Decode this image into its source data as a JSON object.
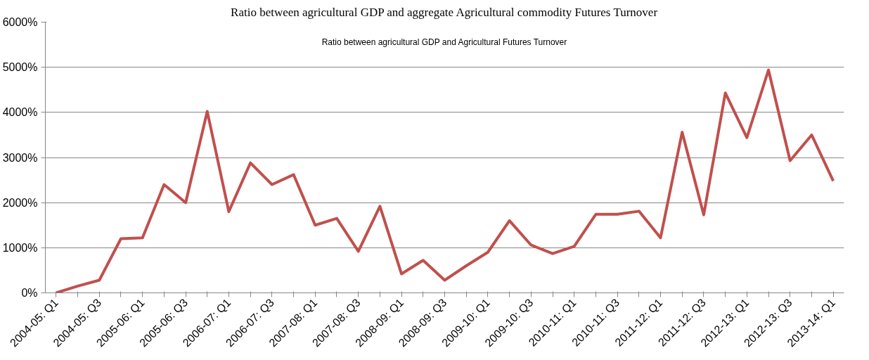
{
  "chart_data": {
    "type": "line",
    "title": "Ratio between agricultural GDP and aggregate Agricultural commodity Futures Turnover",
    "annotations": [
      "Ratio between agricultural GDP and Agricultural Futures Turnover"
    ],
    "categories": [
      "2004-05: Q1",
      null,
      "2004-05: Q3",
      null,
      "2005-06: Q1",
      null,
      "2005-06: Q3",
      null,
      "2006-07: Q1",
      null,
      "2006-07: Q3",
      null,
      "2007-08: Q1",
      null,
      "2007-08: Q3",
      null,
      "2008-09: Q1",
      null,
      "2008-09: Q3",
      null,
      "2009-10: Q1",
      null,
      "2009-10: Q3",
      null,
      "2010-11: Q1",
      null,
      "2010-11: Q3",
      null,
      "2011-12: Q1",
      null,
      "2011-12: Q3",
      null,
      "2012-13: Q1",
      null,
      "2012-13: Q3",
      null,
      "2013-14: Q1"
    ],
    "series": [
      {
        "color": "#c0504d",
        "values": [
          0,
          150,
          280,
          1200,
          1220,
          2400,
          2000,
          4020,
          1800,
          2880,
          2400,
          2620,
          1500,
          1650,
          920,
          1920,
          420,
          720,
          280,
          600,
          900,
          1600,
          1060,
          870,
          1030,
          1740,
          1740,
          1810,
          1220,
          3560,
          1730,
          4430,
          3440,
          4940,
          2930,
          3500,
          2480
        ]
      }
    ],
    "ylim": [
      0,
      6000
    ],
    "yticks": [
      {
        "value": 0,
        "label": "0%"
      },
      {
        "value": 1000,
        "label": "1000%"
      },
      {
        "value": 2000,
        "label": "2000%"
      },
      {
        "value": 3000,
        "label": "3000%"
      },
      {
        "value": 4000,
        "label": "4000%"
      },
      {
        "value": 5000,
        "label": "5000%"
      },
      {
        "value": 6000,
        "label": "6000%"
      }
    ],
    "grid": "y",
    "marker": "none",
    "line_style": "solid"
  }
}
